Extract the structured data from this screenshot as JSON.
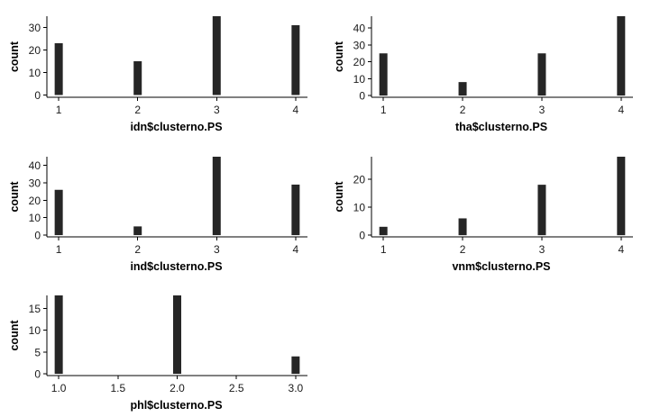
{
  "chart_data": [
    {
      "type": "bar",
      "xlabel": "idn$clusterno.PS",
      "ylabel": "count",
      "x": [
        1,
        2,
        3,
        4
      ],
      "values": [
        23,
        15,
        35,
        31
      ],
      "xlim": [
        0.85,
        4.15
      ],
      "ylim": [
        -1,
        35
      ],
      "xticks": [
        1,
        2,
        3,
        4
      ],
      "xtick_labels": [
        "1",
        "2",
        "3",
        "4"
      ],
      "yticks": [
        0,
        10,
        20,
        30
      ],
      "ytick_labels": [
        "0",
        "10",
        "20",
        "30"
      ],
      "grid": false,
      "legend": "none",
      "bar_color": "#262626"
    },
    {
      "type": "bar",
      "xlabel": "tha$clusterno.PS",
      "ylabel": "count",
      "x": [
        1,
        2,
        3,
        4
      ],
      "values": [
        25,
        8,
        25,
        47
      ],
      "xlim": [
        0.85,
        4.15
      ],
      "ylim": [
        -1,
        47
      ],
      "xticks": [
        1,
        2,
        3,
        4
      ],
      "xtick_labels": [
        "1",
        "2",
        "3",
        "4"
      ],
      "yticks": [
        0,
        10,
        20,
        30,
        40
      ],
      "ytick_labels": [
        "0",
        "10",
        "20",
        "30",
        "40"
      ],
      "grid": false,
      "legend": "none",
      "bar_color": "#262626"
    },
    {
      "type": "bar",
      "xlabel": "ind$clusterno.PS",
      "ylabel": "count",
      "x": [
        1,
        2,
        3,
        4
      ],
      "values": [
        26,
        5,
        45,
        29
      ],
      "xlim": [
        0.85,
        4.15
      ],
      "ylim": [
        -1,
        45
      ],
      "xticks": [
        1,
        2,
        3,
        4
      ],
      "xtick_labels": [
        "1",
        "2",
        "3",
        "4"
      ],
      "yticks": [
        0,
        10,
        20,
        30,
        40
      ],
      "ytick_labels": [
        "0",
        "10",
        "20",
        "30",
        "40"
      ],
      "grid": false,
      "legend": "none",
      "bar_color": "#262626"
    },
    {
      "type": "bar",
      "xlabel": "vnm$clusterno.PS",
      "ylabel": "count",
      "x": [
        1,
        2,
        3,
        4
      ],
      "values": [
        3,
        6,
        18,
        28
      ],
      "xlim": [
        0.85,
        4.15
      ],
      "ylim": [
        -0.6,
        28
      ],
      "xticks": [
        1,
        2,
        3,
        4
      ],
      "xtick_labels": [
        "1",
        "2",
        "3",
        "4"
      ],
      "yticks": [
        0,
        10,
        20
      ],
      "ytick_labels": [
        "0",
        "10",
        "20"
      ],
      "grid": false,
      "legend": "none",
      "bar_color": "#262626"
    },
    {
      "type": "bar",
      "xlabel": "phl$clusterno.PS",
      "ylabel": "count",
      "x": [
        1,
        2,
        3
      ],
      "values": [
        18,
        18,
        4
      ],
      "xlim": [
        0.9,
        3.1
      ],
      "ylim": [
        -0.4,
        18
      ],
      "xticks": [
        1,
        1.5,
        2,
        2.5,
        3
      ],
      "xtick_labels": [
        "1.0",
        "1.5",
        "2.0",
        "2.5",
        "3.0"
      ],
      "yticks": [
        0,
        5,
        10,
        15
      ],
      "ytick_labels": [
        "0",
        "5",
        "10",
        "15"
      ],
      "grid": false,
      "legend": "none",
      "bar_color": "#262626"
    }
  ]
}
